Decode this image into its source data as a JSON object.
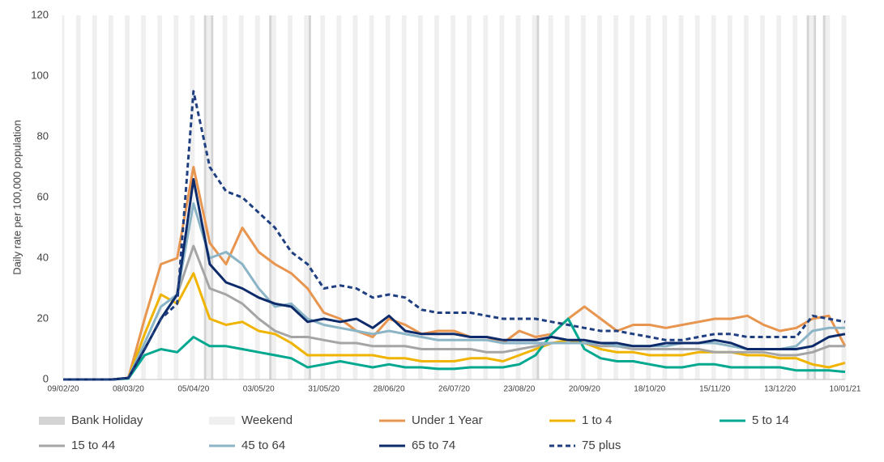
{
  "chart_data": {
    "type": "line",
    "y_label": "Daily rate per 100,000 population",
    "x": [
      "09/02/20",
      "16/02/20",
      "23/02/20",
      "01/03/20",
      "08/03/20",
      "15/03/20",
      "22/03/20",
      "29/03/20",
      "05/04/20",
      "12/04/20",
      "19/04/20",
      "26/04/20",
      "03/05/20",
      "10/05/20",
      "17/05/20",
      "24/05/20",
      "31/05/20",
      "07/06/20",
      "14/06/20",
      "21/06/20",
      "28/06/20",
      "05/07/20",
      "12/07/20",
      "19/07/20",
      "26/07/20",
      "02/08/20",
      "09/08/20",
      "16/08/20",
      "23/08/20",
      "30/08/20",
      "06/09/20",
      "13/09/20",
      "20/09/20",
      "27/09/20",
      "04/10/20",
      "11/10/20",
      "18/10/20",
      "25/10/20",
      "01/11/20",
      "08/11/20",
      "15/11/20",
      "22/11/20",
      "29/11/20",
      "06/12/20",
      "13/12/20",
      "20/12/20",
      "27/12/20",
      "03/01/21",
      "10/01/21"
    ],
    "ylim": [
      0,
      120
    ],
    "yticks": [
      0,
      20,
      40,
      60,
      80,
      100,
      120
    ],
    "grid": false,
    "bank_holiday_label": "Bank Holiday",
    "bank_holiday_color": "#d4d4d4",
    "bank_holidays": [
      "10/04/20",
      "13/04/20",
      "08/05/20",
      "25/05/20",
      "31/08/20",
      "25/12/20",
      "28/12/20",
      "01/01/21"
    ],
    "weekend_label": "Weekend",
    "weekend_color": "#efefef",
    "series": [
      {
        "name": "Under 1 Year",
        "color": "#e8954f",
        "values": [
          0,
          0,
          0,
          0,
          0.5,
          20,
          38,
          40,
          70,
          45,
          38,
          50,
          42,
          38,
          35,
          30,
          22,
          20,
          16,
          14,
          20,
          18,
          15,
          16,
          16,
          14,
          14,
          12,
          16,
          14,
          15,
          20,
          24,
          20,
          16,
          18,
          18,
          17,
          18,
          19,
          20,
          20,
          21,
          18,
          16,
          17,
          20,
          21,
          11
        ]
      },
      {
        "name": "1 to 4",
        "color": "#f0b400",
        "values": [
          0,
          0,
          0,
          0,
          0.5,
          15,
          28,
          25,
          35,
          20,
          18,
          19,
          16,
          15,
          12,
          8,
          8,
          8,
          8,
          8,
          7,
          7,
          6,
          6,
          6,
          7,
          7,
          6,
          8,
          10,
          12,
          13,
          12,
          10,
          9,
          9,
          8,
          8,
          8,
          9,
          9,
          9,
          8,
          8,
          7,
          7,
          5,
          4,
          5.5
        ]
      },
      {
        "name": "5 to 14",
        "color": "#00a88f",
        "values": [
          0,
          0,
          0,
          0,
          0.3,
          8,
          10,
          9,
          14,
          11,
          11,
          10,
          9,
          8,
          7,
          4,
          5,
          6,
          5,
          4,
          5,
          4,
          4,
          3.5,
          3.5,
          4,
          4,
          4,
          5,
          8,
          15,
          20,
          10,
          7,
          6,
          6,
          5,
          4,
          4,
          5,
          5,
          4,
          4,
          4,
          4,
          3,
          3,
          3,
          2.5
        ]
      },
      {
        "name": "15 to 44",
        "color": "#a5a5a5",
        "values": [
          0,
          0,
          0,
          0,
          0.5,
          10,
          20,
          28,
          44,
          30,
          28,
          25,
          20,
          16,
          14,
          14,
          13,
          12,
          12,
          11,
          11,
          11,
          10,
          10,
          10,
          10,
          9,
          9,
          10,
          11,
          12,
          12,
          12,
          11,
          11,
          10,
          10,
          10,
          10,
          10,
          9,
          9,
          9,
          9,
          8,
          8,
          9,
          11,
          11
        ]
      },
      {
        "name": "45 to 64",
        "color": "#8bb5c6",
        "values": [
          0,
          0,
          0,
          0,
          0.5,
          12,
          24,
          28,
          58,
          40,
          42,
          38,
          30,
          24,
          25,
          20,
          18,
          17,
          16,
          15,
          16,
          15,
          14,
          13,
          13,
          13,
          13,
          12,
          12,
          12,
          12,
          12,
          12,
          12,
          11,
          11,
          11,
          11,
          12,
          12,
          12,
          11,
          10,
          10,
          10,
          11,
          16,
          17,
          17
        ]
      },
      {
        "name": "65 to 74",
        "color": "#0d2b6b",
        "values": [
          0,
          0,
          0,
          0,
          0.5,
          10,
          20,
          28,
          66,
          38,
          32,
          30,
          27,
          25,
          24,
          19,
          20,
          19,
          20,
          17,
          21,
          16,
          15,
          15,
          15,
          14,
          14,
          13,
          13,
          13,
          14,
          13,
          13,
          12,
          12,
          11,
          11,
          12,
          12,
          12,
          13,
          12,
          10,
          10,
          10,
          10,
          11,
          14,
          15
        ]
      },
      {
        "name": "75 plus",
        "color": "#1f3f80",
        "dashed": true,
        "values": [
          0,
          0,
          0,
          0,
          0.5,
          10,
          20,
          25,
          95,
          70,
          62,
          60,
          55,
          50,
          42,
          38,
          30,
          31,
          30,
          27,
          28,
          27,
          23,
          22,
          22,
          22,
          21,
          20,
          20,
          20,
          19,
          18,
          17,
          16,
          16,
          15,
          14,
          13,
          13,
          14,
          15,
          15,
          14,
          14,
          14,
          14,
          21,
          20,
          19
        ]
      }
    ]
  }
}
